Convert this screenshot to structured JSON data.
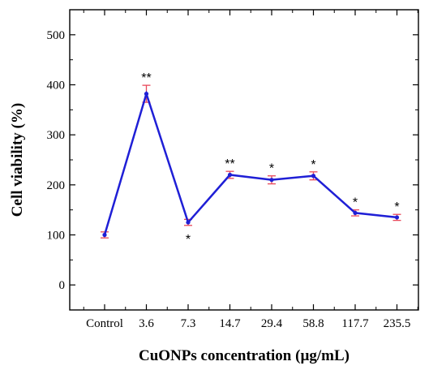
{
  "chart_data": {
    "type": "line",
    "xlabel": "CuONPs concentration (µg/mL)",
    "ylabel": "Cell viability (%)",
    "categories": [
      "Control",
      "3.6",
      "7.3",
      "14.7",
      "29.4",
      "58.8",
      "117.7",
      "235.5"
    ],
    "ylim": [
      -50,
      550
    ],
    "yticks": [
      "0",
      "100",
      "200",
      "300",
      "400",
      "500"
    ],
    "series": [
      {
        "values": [
          100,
          382,
          125,
          220,
          210,
          218,
          144,
          135
        ],
        "errors": [
          6,
          17,
          6,
          7,
          8,
          8,
          6,
          6
        ],
        "significance": [
          "",
          "**",
          "*",
          "**",
          "*",
          "*",
          "*",
          "*"
        ],
        "significance_position": [
          "",
          "above",
          "below",
          "above",
          "above",
          "above",
          "above",
          "above"
        ]
      }
    ],
    "grid": false,
    "line_color": "#1f1fd6",
    "marker_color": "#1f1fd6",
    "errorbar_color": "#e8485a"
  }
}
